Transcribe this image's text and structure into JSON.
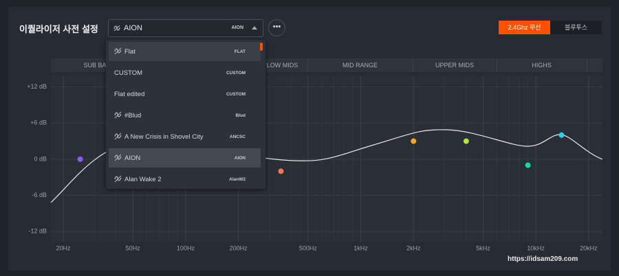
{
  "header": {
    "title": "이퀄라이저 사전 설정",
    "preset_select": {
      "label": "AION",
      "tag": "AION"
    },
    "connection_tabs": [
      "2.4Ghz 무선",
      "블루투스"
    ],
    "active_tab": 0
  },
  "preset_menu": {
    "highlighted": 0,
    "selected": 5,
    "items": [
      {
        "name": "Flat",
        "tag": "FLAT",
        "icon": true
      },
      {
        "name": "CUSTOM",
        "tag": "CUSTOM",
        "icon": false
      },
      {
        "name": "Flat edited",
        "tag": "CUSTOM",
        "icon": false
      },
      {
        "name": "#Blud",
        "tag": "Blud",
        "icon": true
      },
      {
        "name": "A New Crisis in Shovel City",
        "tag": "ANCSC",
        "icon": true
      },
      {
        "name": "AION",
        "tag": "AION",
        "icon": true
      },
      {
        "name": "Alan Wake 2",
        "tag": "AlanW2",
        "icon": true
      }
    ]
  },
  "bands": [
    "SUB BASS",
    "LOW MIDS",
    "MID RANGE",
    "UPPER MIDS",
    "HIGHS"
  ],
  "graph": {
    "log_x": true,
    "xlim": [
      17,
      24000
    ],
    "ylim": [
      -13.7,
      13.9
    ],
    "yticks": [
      {
        "value": 12,
        "label": "+12 dB"
      },
      {
        "value": 6,
        "label": "+6 dB"
      },
      {
        "value": 0,
        "label": "0 dB"
      },
      {
        "value": -6,
        "label": "-6 dB"
      },
      {
        "value": -12,
        "label": "-12 dB"
      }
    ],
    "xticks": [
      {
        "value": 20,
        "label": "20Hz"
      },
      {
        "value": 50,
        "label": "50Hz"
      },
      {
        "value": 100,
        "label": "100Hz"
      },
      {
        "value": 200,
        "label": "200Hz"
      },
      {
        "value": 500,
        "label": "500Hz"
      },
      {
        "value": 1000,
        "label": "1kHz"
      },
      {
        "value": 2000,
        "label": "2kHz"
      },
      {
        "value": 5000,
        "label": "5kHz"
      },
      {
        "value": 10000,
        "label": "10kHz"
      },
      {
        "value": 20000,
        "label": "20kHz"
      }
    ],
    "points": [
      {
        "freq": 25,
        "gain": 0,
        "color": "#8b5cf6"
      },
      {
        "freq": 350,
        "gain": -2,
        "color": "#f97355"
      },
      {
        "freq": 2000,
        "gain": 3,
        "color": "#f5a623"
      },
      {
        "freq": 4000,
        "gain": 3,
        "color": "#b5e33a"
      },
      {
        "freq": 9000,
        "gain": -1,
        "color": "#1dd3b0"
      },
      {
        "freq": 14000,
        "gain": 4,
        "color": "#22d3ee"
      }
    ]
  },
  "watermark": "https://idsam209.com"
}
